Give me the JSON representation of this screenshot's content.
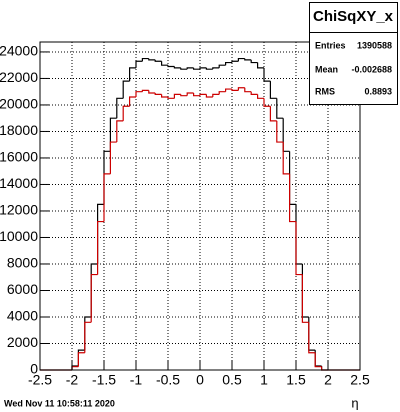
{
  "chart_data": {
    "type": "histogram",
    "x_label": "η",
    "date": "Wed Nov 11 10:58:11 2020",
    "stats": {
      "title": "ChiSqXY_x",
      "labels": [
        "Entries",
        "Mean",
        "RMS"
      ],
      "values": [
        1390588,
        -0.002688,
        0.8893
      ]
    },
    "bins": [
      -2.5,
      -2.4,
      -2.3,
      -2.2,
      -2.1,
      -2.0,
      -1.9,
      -1.8,
      -1.7,
      -1.6,
      -1.5,
      -1.4,
      -1.3,
      -1.2,
      -1.1,
      -1.0,
      -0.9,
      -0.8,
      -0.7,
      -0.6,
      -0.5,
      -0.4,
      -0.3,
      -0.2,
      -0.1,
      0,
      0.1,
      0.2,
      0.3,
      0.4,
      0.5,
      0.6,
      0.7,
      0.8,
      0.9,
      1.0,
      1.1,
      1.2,
      1.3,
      1.4,
      1.5,
      1.6,
      1.7,
      1.8,
      1.9,
      2.0,
      2.1,
      2.2,
      2.3,
      2.4,
      2.5
    ],
    "series": [
      {
        "color": "#000000",
        "values": [
          0,
          0,
          0,
          0,
          0,
          300,
          1500,
          4000,
          8000,
          12500,
          16500,
          19000,
          20500,
          21800,
          22800,
          23300,
          23500,
          23400,
          23300,
          23000,
          22900,
          22800,
          22700,
          22800,
          22700,
          22800,
          22700,
          22800,
          23000,
          23200,
          23300,
          23500,
          23400,
          23200,
          22800,
          21800,
          20500,
          19000,
          16500,
          12500,
          8000,
          4000,
          1500,
          300,
          0,
          0,
          0,
          0,
          0,
          0
        ]
      },
      {
        "color": "#cc0000",
        "values": [
          0,
          0,
          0,
          0,
          0,
          250,
          1300,
          3600,
          7200,
          11200,
          14800,
          17200,
          18800,
          19900,
          20600,
          21000,
          21100,
          20900,
          20800,
          20600,
          20500,
          20800,
          20700,
          20900,
          20700,
          20800,
          20600,
          20800,
          21000,
          21200,
          21100,
          21300,
          21000,
          20800,
          20500,
          19900,
          18800,
          17200,
          14800,
          11200,
          7200,
          3600,
          1300,
          250,
          0,
          0,
          0,
          0,
          0,
          0
        ]
      }
    ],
    "xlim": [
      -2.5,
      2.5
    ],
    "ylim": [
      0,
      24750
    ],
    "xticks": [
      -2.5,
      -2,
      -1.5,
      -1,
      -0.5,
      0,
      0.5,
      1,
      1.5,
      2,
      2.5
    ],
    "yticks": [
      0,
      2000,
      4000,
      6000,
      8000,
      10000,
      12000,
      14000,
      16000,
      18000,
      20000,
      22000,
      24000
    ],
    "grid": true
  }
}
